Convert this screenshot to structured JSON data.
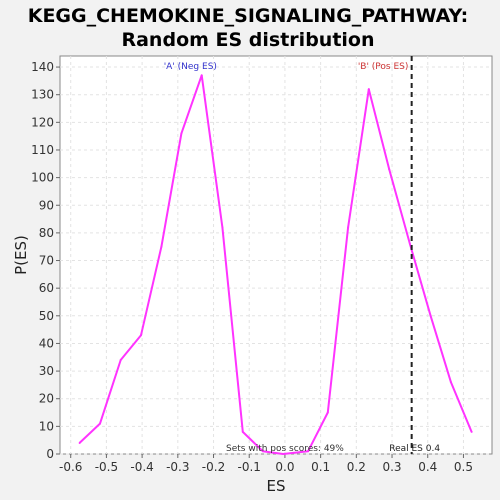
{
  "chart_data": {
    "type": "line",
    "title": "KEGG_CHEMOKINE_SIGNALING_PATHWAY:",
    "subtitle": "Random ES distribution",
    "xlabel": "ES",
    "ylabel": "P(ES)",
    "xlim": [
      -0.63,
      0.58
    ],
    "ylim": [
      0,
      144
    ],
    "x_ticks": [
      -0.6,
      -0.5,
      -0.4,
      -0.3,
      -0.2,
      -0.1,
      0.0,
      0.1,
      0.2,
      0.3,
      0.4,
      0.5
    ],
    "x_tick_labels": [
      "-0.6",
      "-0.5",
      "-0.4",
      "-0.3",
      "-0.2",
      "-0.1",
      "0.0",
      "0.1",
      "0.2",
      "0.3",
      "0.4",
      "0.5"
    ],
    "y_ticks": [
      0,
      10,
      20,
      30,
      40,
      50,
      60,
      70,
      80,
      90,
      100,
      110,
      120,
      130,
      140
    ],
    "grid": true,
    "series": [
      {
        "color": "#ff33ff",
        "x": [
          -0.575,
          -0.518,
          -0.46,
          -0.403,
          -0.346,
          -0.29,
          -0.233,
          -0.175,
          -0.118,
          -0.062,
          -0.005,
          0.065,
          0.12,
          0.177,
          0.235,
          0.292,
          0.35,
          0.408,
          0.465,
          0.523
        ],
        "y": [
          4,
          11,
          34,
          43,
          75,
          116,
          137,
          82,
          8,
          1,
          0,
          1,
          15,
          82,
          132,
          103,
          76,
          50,
          26,
          8
        ]
      }
    ],
    "real_es": {
      "x": 0.355,
      "label": "Real ES 0.4",
      "color": "#222222"
    },
    "annotations": [
      {
        "text": "'A' (Neg ES)",
        "x": -0.265,
        "color": "#3333cc"
      },
      {
        "text": "'B' (Pos ES)",
        "x": 0.275,
        "color": "#cc3333"
      },
      {
        "text": "Sets with pos scores: 49%",
        "x": 0.0,
        "color": "#333333"
      }
    ]
  }
}
